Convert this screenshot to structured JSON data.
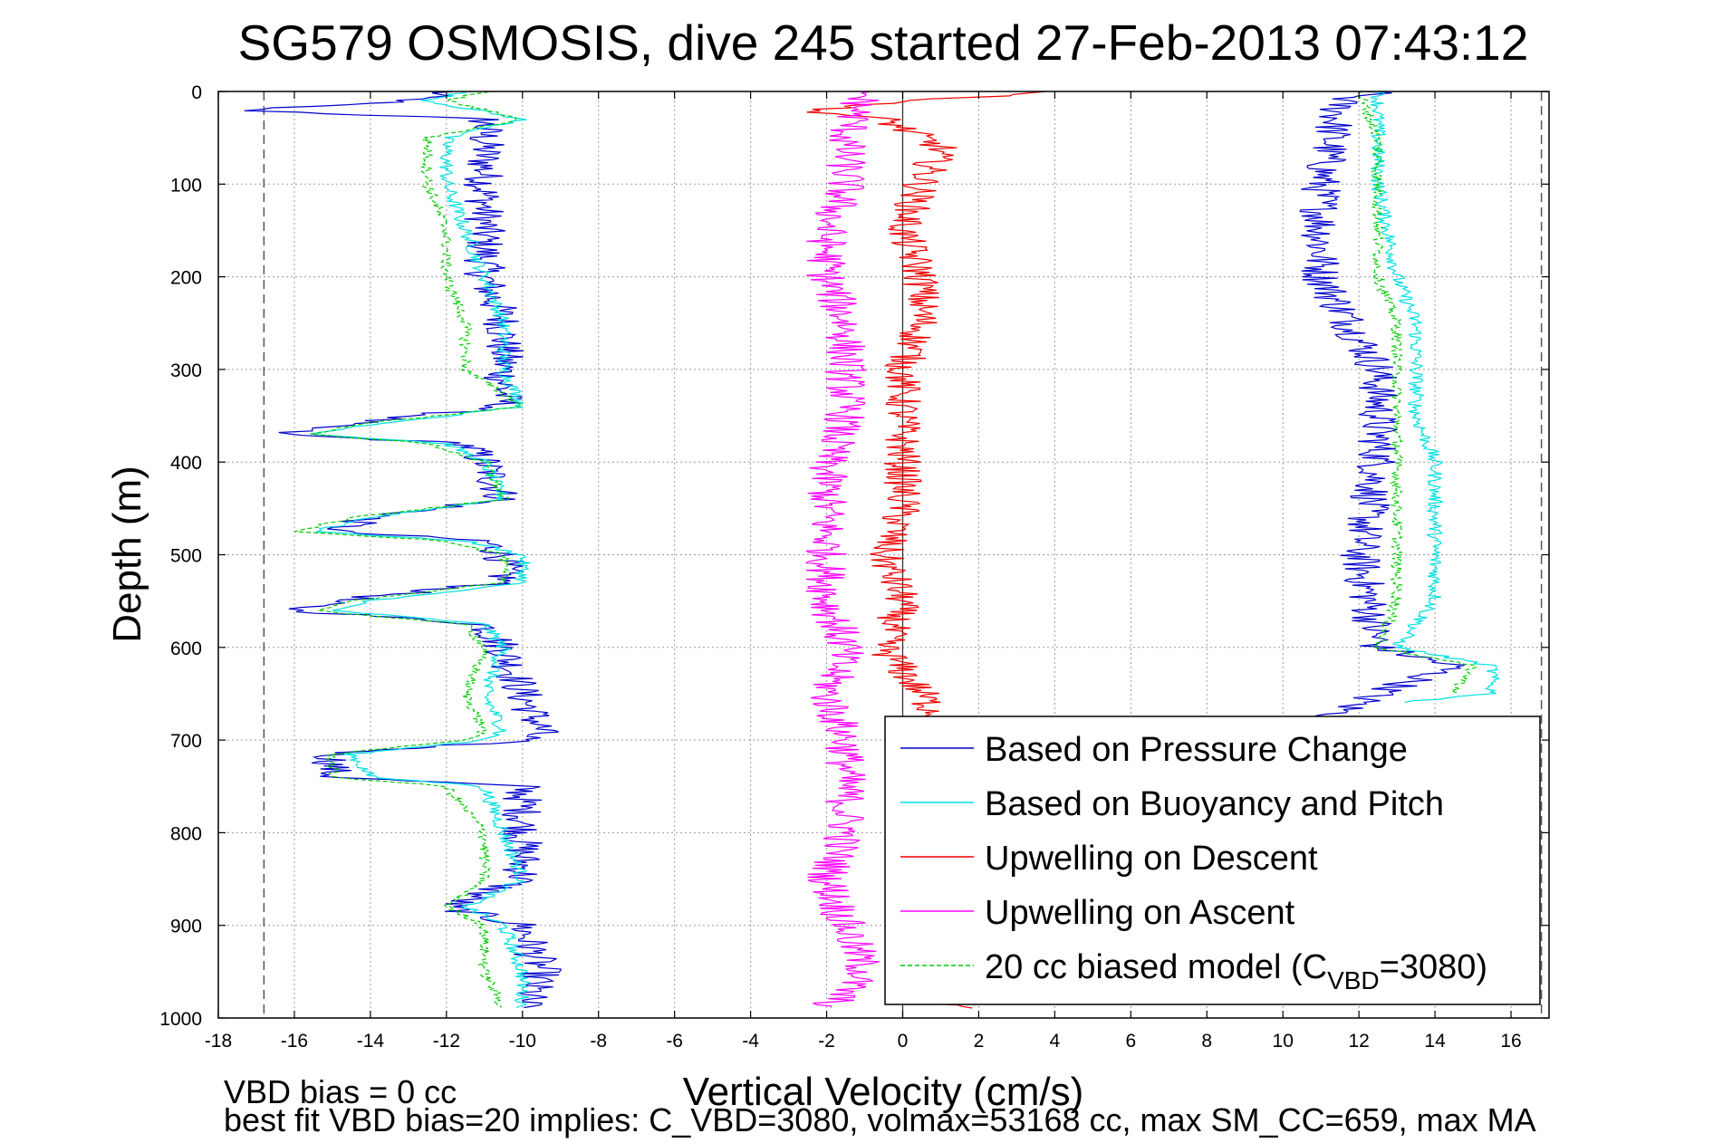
{
  "chart_data": {
    "type": "line",
    "title": "SG579 OSMOSIS, dive 245 started 27-Feb-2013 07:43:12",
    "xlabel": "Vertical Velocity (cm/s)",
    "ylabel": "Depth (m)",
    "xlim": [
      -18,
      17
    ],
    "ylim": [
      0,
      1000
    ],
    "y_reversed": true,
    "xticks": [
      -18,
      -16,
      -14,
      -12,
      -10,
      -8,
      -6,
      -4,
      -2,
      0,
      2,
      4,
      6,
      8,
      10,
      12,
      14,
      16
    ],
    "yticks": [
      0,
      100,
      200,
      300,
      400,
      500,
      600,
      700,
      800,
      900,
      1000
    ],
    "grid": true,
    "legend_position": "lower-right",
    "reference_lines": [
      {
        "x": -16.8,
        "style": "dashed"
      },
      {
        "x": 16.8,
        "style": "dashed"
      },
      {
        "x": 0,
        "style": "solid"
      }
    ],
    "series": [
      {
        "name": "Based on Pressure Change",
        "color": "#0000cc",
        "style": "solid",
        "segments": [
          {
            "y": [
              0,
              10,
              20,
              30,
              60,
              100,
              150,
              200,
              250,
              300,
              340,
              360,
              370,
              380,
              400,
              440,
              460,
              475,
              485,
              500,
              530,
              550,
              560,
              575,
              600,
              650,
              690,
              700,
              715,
              740,
              750,
              800,
              850,
              880,
              900,
              950,
              990
            ],
            "x": [
              -12,
              -13,
              -17.5,
              -11,
              -11,
              -11,
              -11,
              -11,
              -10.5,
              -10.5,
              -10.5,
              -15,
              -16.5,
              -11.5,
              -11,
              -10.5,
              -14,
              -15,
              -11,
              -10.5,
              -10.5,
              -15,
              -16,
              -11,
              -10.5,
              -10,
              -9.5,
              -10,
              -15,
              -15,
              -10,
              -10,
              -10,
              -12,
              -10,
              -9.5,
              -10
            ]
          },
          {
            "y": [
              0,
              10,
              100,
              200,
              300,
              400,
              500,
              600,
              620,
              650,
              680
            ],
            "x": [
              12.5,
              11.5,
              11,
              11,
              12.5,
              12.5,
              12,
              12.5,
              14.5,
              12.5,
              11
            ]
          }
        ]
      },
      {
        "name": "Based on Buoyancy and Pitch",
        "color": "#00e0e0",
        "style": "solid",
        "segments": [
          {
            "y": [
              0,
              10,
              30,
              50,
              100,
              150,
              200,
              250,
              300,
              340,
              360,
              370,
              380,
              400,
              440,
              460,
              475,
              485,
              500,
              530,
              550,
              560,
              575,
              600,
              650,
              690,
              700,
              715,
              740,
              750,
              800,
              850,
              880,
              900,
              950,
              990
            ],
            "x": [
              -11.5,
              -12.5,
              -10,
              -12,
              -12,
              -11.5,
              -11,
              -10.5,
              -10.5,
              -10,
              -14,
              -15.5,
              -12,
              -11,
              -10.5,
              -14,
              -15.5,
              -11.5,
              -10,
              -10,
              -14,
              -15,
              -11,
              -10.5,
              -11,
              -10.5,
              -11,
              -14.5,
              -14,
              -11,
              -10.5,
              -10,
              -11.5,
              -10.5,
              -10,
              -10
            ]
          },
          {
            "y": [
              0,
              50,
              100,
              200,
              250,
              300,
              350,
              400,
              450,
              500,
              550,
              600,
              620,
              650,
              660
            ],
            "x": [
              12.5,
              12.5,
              12.5,
              13,
              13.5,
              13.5,
              13.5,
              14,
              14,
              14,
              14,
              13,
              15.5,
              15.5,
              13
            ]
          }
        ]
      },
      {
        "name": "Upwelling on Descent",
        "color": "#ee0000",
        "style": "solid",
        "segments": [
          {
            "y": [
              0,
              10,
              20,
              30,
              60,
              100,
              150,
              200,
              250,
              300,
              350,
              400,
              450,
              500,
              550,
              600,
              650,
              680
            ],
            "x": [
              4,
              0.5,
              -2.5,
              -0.5,
              1,
              0.5,
              0,
              0.5,
              0.5,
              0,
              0,
              0,
              0,
              -0.5,
              0,
              -0.5,
              0.5,
              1
            ]
          },
          {
            "y": [
              970,
              980,
              990
            ],
            "x": [
              0,
              0.5,
              1.5
            ]
          }
        ]
      },
      {
        "name": "Upwelling on Ascent",
        "color": "#ff00ff",
        "style": "solid",
        "segments": [
          {
            "y": [
              0,
              50,
              100,
              150,
              200,
              250,
              300,
              350,
              400,
              450,
              500,
              550,
              600,
              650,
              700,
              750,
              800,
              850,
              900,
              950,
              990
            ],
            "x": [
              -1,
              -1.5,
              -1.5,
              -2,
              -2,
              -1.5,
              -1.5,
              -1.5,
              -2,
              -2,
              -2,
              -2,
              -1.5,
              -2,
              -1.5,
              -1.5,
              -1.5,
              -2,
              -1.5,
              -1,
              -2
            ]
          }
        ]
      },
      {
        "name": "20 cc biased model (C_VBD=3080)",
        "color": "#00cc00",
        "style": "dashed",
        "segments": [
          {
            "y": [
              0,
              10,
              30,
              50,
              100,
              150,
              200,
              250,
              300,
              340,
              360,
              370,
              380,
              400,
              440,
              460,
              475,
              485,
              500,
              530,
              550,
              560,
              575,
              600,
              650,
              690,
              700,
              715,
              740,
              750,
              800,
              850,
              880,
              900,
              950,
              990
            ],
            "x": [
              -11,
              -12,
              -10,
              -12.5,
              -12.5,
              -12,
              -12,
              -11.5,
              -11.5,
              -10,
              -14.5,
              -15.5,
              -12.5,
              -11,
              -10.5,
              -14.5,
              -16,
              -12,
              -10.5,
              -10.5,
              -14.5,
              -15.5,
              -11.5,
              -11,
              -11.5,
              -11,
              -11.5,
              -15,
              -15,
              -12,
              -11,
              -11,
              -12,
              -11,
              -11,
              -10.5
            ]
          },
          {
            "y": [
              0,
              50,
              100,
              200,
              250,
              300,
              350,
              400,
              450,
              500,
              550,
              600,
              620,
              650
            ],
            "x": [
              12,
              12.5,
              12.5,
              12.5,
              13,
              13,
              13,
              13,
              13,
              13,
              13,
              12.5,
              15,
              14.5
            ]
          }
        ]
      }
    ],
    "legend_label_parts": {
      "prefix": "20 cc biased model (C",
      "subscript": "VBD",
      "suffix": "=3080)"
    },
    "annotations": [
      "VBD bias = 0 cc",
      "best fit VBD bias=20 implies: C_VBD=3080, volmax=53168 cc, max SM_CC=659, max MA"
    ]
  }
}
